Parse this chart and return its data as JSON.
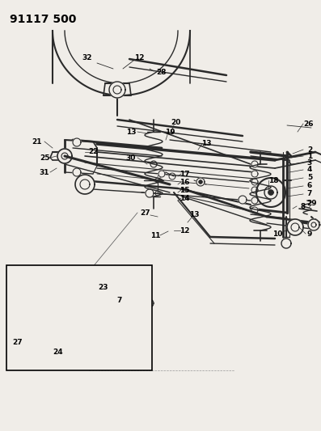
{
  "title": "91117 500",
  "bg_color": "#f0ede8",
  "line_color": "#2a2a2a",
  "title_fontsize": 10,
  "label_fontsize": 6.5,
  "figsize": [
    3.97,
    5.33
  ],
  "dpi": 100
}
